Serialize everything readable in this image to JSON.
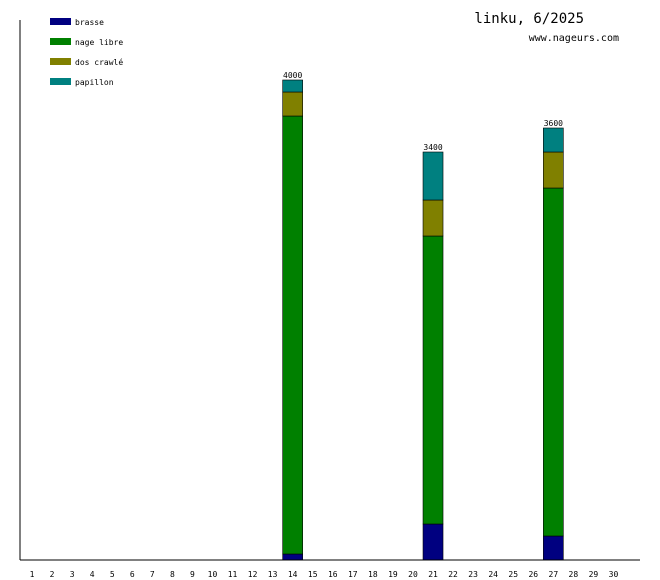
{
  "chart_data": {
    "type": "bar",
    "stacked": true,
    "title": "linku, 6/2025",
    "subtitle": "www.nageurs.com",
    "categories": [
      "1",
      "2",
      "3",
      "4",
      "5",
      "6",
      "7",
      "8",
      "9",
      "10",
      "11",
      "12",
      "13",
      "14",
      "15",
      "16",
      "17",
      "18",
      "19",
      "20",
      "21",
      "22",
      "23",
      "24",
      "25",
      "26",
      "27",
      "28",
      "29",
      "30"
    ],
    "series": [
      {
        "name": "brasse",
        "color": "#000080",
        "values": [
          0,
          0,
          0,
          0,
          0,
          0,
          0,
          0,
          0,
          0,
          0,
          0,
          0,
          50,
          0,
          0,
          0,
          0,
          0,
          0,
          300,
          0,
          0,
          0,
          0,
          0,
          200,
          0,
          0,
          0
        ]
      },
      {
        "name": "nage libre",
        "color": "#008000",
        "values": [
          0,
          0,
          0,
          0,
          0,
          0,
          0,
          0,
          0,
          0,
          0,
          0,
          0,
          3650,
          0,
          0,
          0,
          0,
          0,
          0,
          2400,
          0,
          0,
          0,
          0,
          0,
          2900,
          0,
          0,
          0
        ]
      },
      {
        "name": "dos crawlé",
        "color": "#808000",
        "values": [
          0,
          0,
          0,
          0,
          0,
          0,
          0,
          0,
          0,
          0,
          0,
          0,
          0,
          200,
          0,
          0,
          0,
          0,
          0,
          0,
          300,
          0,
          0,
          0,
          0,
          0,
          300,
          0,
          0,
          0
        ]
      },
      {
        "name": "papillon",
        "color": "#008080",
        "values": [
          0,
          0,
          0,
          0,
          0,
          0,
          0,
          0,
          0,
          0,
          0,
          0,
          0,
          100,
          0,
          0,
          0,
          0,
          0,
          0,
          400,
          0,
          0,
          0,
          0,
          0,
          200,
          0,
          0,
          0
        ]
      }
    ],
    "totals": [
      {
        "category": "14",
        "label": "4000"
      },
      {
        "category": "21",
        "label": "3400"
      },
      {
        "category": "27",
        "label": "3600"
      }
    ],
    "ylim": [
      0,
      4000
    ],
    "grid": false,
    "legend_position": "top-left"
  }
}
